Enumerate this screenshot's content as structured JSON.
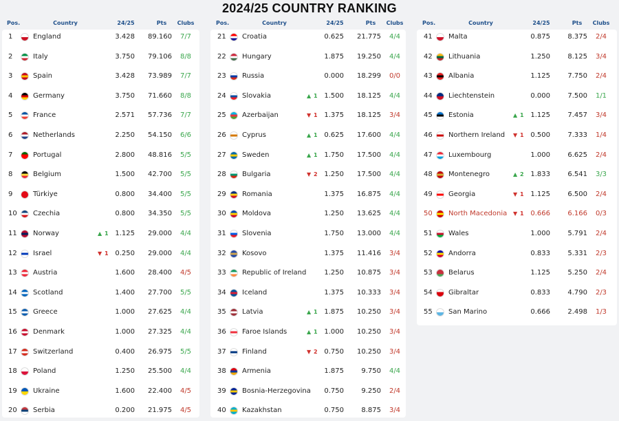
{
  "title": "2024/25 COUNTRY RANKING",
  "columns": {
    "pos": "Pos.",
    "country": "Country",
    "coef": "24/25",
    "pts": "Pts",
    "clubs": "Clubs"
  },
  "rows": [
    {
      "pos": 1,
      "country": "England",
      "coef": "3.428",
      "pts": "89.160",
      "clubs": "7/7",
      "flag": [
        "#fff",
        "#ce1124"
      ]
    },
    {
      "pos": 2,
      "country": "Italy",
      "coef": "3.750",
      "pts": "79.106",
      "clubs": "8/8",
      "flag": [
        "#009246",
        "#fff",
        "#ce2b37"
      ]
    },
    {
      "pos": 3,
      "country": "Spain",
      "coef": "3.428",
      "pts": "73.989",
      "clubs": "7/7",
      "flag": [
        "#c60b1e",
        "#ffc400",
        "#c60b1e"
      ]
    },
    {
      "pos": 4,
      "country": "Germany",
      "coef": "3.750",
      "pts": "71.660",
      "clubs": "8/8",
      "flag": [
        "#000",
        "#dd0000",
        "#ffce00"
      ]
    },
    {
      "pos": 5,
      "country": "France",
      "coef": "2.571",
      "pts": "57.736",
      "clubs": "7/7",
      "flag": [
        "#0055a4",
        "#fff",
        "#ef4135"
      ]
    },
    {
      "pos": 6,
      "country": "Netherlands",
      "coef": "2.250",
      "pts": "54.150",
      "clubs": "6/6",
      "flag": [
        "#ae1c28",
        "#fff",
        "#21468b"
      ]
    },
    {
      "pos": 7,
      "country": "Portugal",
      "coef": "2.800",
      "pts": "48.816",
      "clubs": "5/5",
      "flag": [
        "#006600",
        "#ff0000",
        "#ff0000"
      ]
    },
    {
      "pos": 8,
      "country": "Belgium",
      "coef": "1.500",
      "pts": "42.700",
      "clubs": "5/5",
      "flag": [
        "#000",
        "#fae042",
        "#ed2939"
      ]
    },
    {
      "pos": 9,
      "country": "Türkiye",
      "coef": "0.800",
      "pts": "34.400",
      "clubs": "5/5",
      "flag": [
        "#e30a17",
        "#e30a17"
      ]
    },
    {
      "pos": 10,
      "country": "Czechia",
      "coef": "0.800",
      "pts": "34.350",
      "clubs": "5/5",
      "flag": [
        "#11457e",
        "#fff",
        "#d7141a"
      ]
    },
    {
      "pos": 11,
      "country": "Norway",
      "move": "1",
      "move_dir": "up",
      "coef": "1.125",
      "pts": "29.000",
      "clubs": "4/4",
      "flag": [
        "#ba0c2f",
        "#00205b",
        "#ba0c2f"
      ]
    },
    {
      "pos": 12,
      "country": "Israel",
      "move": "1",
      "move_dir": "down",
      "coef": "0.250",
      "pts": "29.000",
      "clubs": "4/4",
      "flag": [
        "#fff",
        "#0038b8",
        "#fff"
      ]
    },
    {
      "pos": 13,
      "country": "Austria",
      "coef": "1.600",
      "pts": "28.400",
      "clubs": "4/5",
      "flag": [
        "#ed2939",
        "#fff",
        "#ed2939"
      ]
    },
    {
      "pos": 14,
      "country": "Scotland",
      "coef": "1.400",
      "pts": "27.700",
      "clubs": "5/5",
      "flag": [
        "#0065bd",
        "#fff",
        "#0065bd"
      ]
    },
    {
      "pos": 15,
      "country": "Greece",
      "coef": "1.000",
      "pts": "27.625",
      "clubs": "4/4",
      "flag": [
        "#0d5eaf",
        "#fff",
        "#0d5eaf"
      ]
    },
    {
      "pos": 16,
      "country": "Denmark",
      "coef": "1.000",
      "pts": "27.325",
      "clubs": "4/4",
      "flag": [
        "#c8102e",
        "#fff",
        "#c8102e"
      ]
    },
    {
      "pos": 17,
      "country": "Switzerland",
      "coef": "0.400",
      "pts": "26.975",
      "clubs": "5/5",
      "flag": [
        "#d52b1e",
        "#fff",
        "#d52b1e"
      ]
    },
    {
      "pos": 18,
      "country": "Poland",
      "coef": "1.250",
      "pts": "25.500",
      "clubs": "4/4",
      "flag": [
        "#fff",
        "#dc143c"
      ]
    },
    {
      "pos": 19,
      "country": "Ukraine",
      "coef": "1.600",
      "pts": "22.400",
      "clubs": "4/5",
      "flag": [
        "#0057b7",
        "#ffd700"
      ]
    },
    {
      "pos": 20,
      "country": "Serbia",
      "coef": "0.200",
      "pts": "21.975",
      "clubs": "4/5",
      "flag": [
        "#c6363c",
        "#0c4076",
        "#fff"
      ]
    },
    {
      "pos": 21,
      "country": "Croatia",
      "coef": "0.625",
      "pts": "21.775",
      "clubs": "4/4",
      "flag": [
        "#ff0000",
        "#fff",
        "#171796"
      ]
    },
    {
      "pos": 22,
      "country": "Hungary",
      "coef": "1.875",
      "pts": "19.250",
      "clubs": "4/4",
      "flag": [
        "#cd2a3e",
        "#fff",
        "#436f4d"
      ]
    },
    {
      "pos": 23,
      "country": "Russia",
      "coef": "0.000",
      "pts": "18.299",
      "clubs": "0/0",
      "flag": [
        "#fff",
        "#0039a6",
        "#d52b1e"
      ]
    },
    {
      "pos": 24,
      "country": "Slovakia",
      "move": "1",
      "move_dir": "up",
      "coef": "1.500",
      "pts": "18.125",
      "clubs": "4/4",
      "flag": [
        "#fff",
        "#0b4ea2",
        "#ee1c25"
      ]
    },
    {
      "pos": 25,
      "country": "Azerbaijan",
      "move": "1",
      "move_dir": "down",
      "coef": "1.375",
      "pts": "18.125",
      "clubs": "3/4",
      "flag": [
        "#00b5e2",
        "#ef3340",
        "#509e2f"
      ]
    },
    {
      "pos": 26,
      "country": "Cyprus",
      "move": "1",
      "move_dir": "up",
      "coef": "0.625",
      "pts": "17.600",
      "clubs": "4/4",
      "flag": [
        "#fff",
        "#d57800",
        "#fff"
      ]
    },
    {
      "pos": 27,
      "country": "Sweden",
      "move": "1",
      "move_dir": "up",
      "coef": "1.750",
      "pts": "17.500",
      "clubs": "4/4",
      "flag": [
        "#006aa7",
        "#fecc00",
        "#006aa7"
      ]
    },
    {
      "pos": 28,
      "country": "Bulgaria",
      "move": "2",
      "move_dir": "down",
      "coef": "1.250",
      "pts": "17.500",
      "clubs": "4/4",
      "flag": [
        "#fff",
        "#00966e",
        "#d62612"
      ]
    },
    {
      "pos": 29,
      "country": "Romania",
      "coef": "1.375",
      "pts": "16.875",
      "clubs": "4/4",
      "flag": [
        "#002b7f",
        "#fcd116",
        "#ce1126"
      ]
    },
    {
      "pos": 30,
      "country": "Moldova",
      "coef": "1.250",
      "pts": "13.625",
      "clubs": "4/4",
      "flag": [
        "#0046ae",
        "#ffd200",
        "#cc092f"
      ]
    },
    {
      "pos": 31,
      "country": "Slovenia",
      "coef": "1.750",
      "pts": "13.000",
      "clubs": "4/4",
      "flag": [
        "#fff",
        "#005ce5",
        "#ed1c24"
      ]
    },
    {
      "pos": 32,
      "country": "Kosovo",
      "coef": "1.375",
      "pts": "11.416",
      "clubs": "3/4",
      "flag": [
        "#244aa5",
        "#d0a650",
        "#244aa5"
      ]
    },
    {
      "pos": 33,
      "country": "Republic of Ireland",
      "coef": "1.250",
      "pts": "10.875",
      "clubs": "3/4",
      "flag": [
        "#169b62",
        "#fff",
        "#ff883e"
      ]
    },
    {
      "pos": 34,
      "country": "Iceland",
      "coef": "1.375",
      "pts": "10.333",
      "clubs": "3/4",
      "flag": [
        "#02529c",
        "#dc1e35",
        "#02529c"
      ]
    },
    {
      "pos": 35,
      "country": "Latvia",
      "move": "1",
      "move_dir": "up",
      "coef": "1.875",
      "pts": "10.250",
      "clubs": "3/4",
      "flag": [
        "#9e3039",
        "#fff",
        "#9e3039"
      ]
    },
    {
      "pos": 36,
      "country": "Faroe Islands",
      "move": "1",
      "move_dir": "up",
      "coef": "1.000",
      "pts": "10.250",
      "clubs": "3/4",
      "flag": [
        "#fff",
        "#ef303e",
        "#fff"
      ]
    },
    {
      "pos": 37,
      "country": "Finland",
      "move": "2",
      "move_dir": "down",
      "coef": "0.750",
      "pts": "10.250",
      "clubs": "3/4",
      "flag": [
        "#fff",
        "#003580",
        "#fff"
      ]
    },
    {
      "pos": 38,
      "country": "Armenia",
      "coef": "1.875",
      "pts": "9.750",
      "clubs": "4/4",
      "flag": [
        "#d90012",
        "#0033a0",
        "#f2a800"
      ]
    },
    {
      "pos": 39,
      "country": "Bosnia-Herzegovina",
      "coef": "0.750",
      "pts": "9.250",
      "clubs": "2/4",
      "flag": [
        "#002395",
        "#fecb00",
        "#002395"
      ]
    },
    {
      "pos": 40,
      "country": "Kazakhstan",
      "coef": "0.750",
      "pts": "8.875",
      "clubs": "3/4",
      "flag": [
        "#00afca",
        "#fec50c",
        "#00afca"
      ]
    },
    {
      "pos": 41,
      "country": "Malta",
      "coef": "0.875",
      "pts": "8.375",
      "clubs": "2/4",
      "flag": [
        "#fff",
        "#cf142b"
      ]
    },
    {
      "pos": 42,
      "country": "Lithuania",
      "coef": "1.250",
      "pts": "8.125",
      "clubs": "3/4",
      "flag": [
        "#fdb913",
        "#006a44",
        "#c1272d"
      ]
    },
    {
      "pos": 43,
      "country": "Albania",
      "coef": "1.125",
      "pts": "7.750",
      "clubs": "2/4",
      "flag": [
        "#e41e20",
        "#000",
        "#e41e20"
      ]
    },
    {
      "pos": 44,
      "country": "Liechtenstein",
      "coef": "0.000",
      "pts": "7.500",
      "clubs": "1/1",
      "flag": [
        "#002b7f",
        "#ce1126"
      ]
    },
    {
      "pos": 45,
      "country": "Estonia",
      "move": "1",
      "move_dir": "up",
      "coef": "1.125",
      "pts": "7.457",
      "clubs": "3/4",
      "flag": [
        "#0072ce",
        "#000",
        "#fff"
      ]
    },
    {
      "pos": 46,
      "country": "Northern Ireland",
      "move": "1",
      "move_dir": "down",
      "coef": "0.500",
      "pts": "7.333",
      "clubs": "1/4",
      "flag": [
        "#fff",
        "#cc0000",
        "#fff"
      ]
    },
    {
      "pos": 47,
      "country": "Luxembourg",
      "coef": "1.000",
      "pts": "6.625",
      "clubs": "2/4",
      "flag": [
        "#ed2939",
        "#fff",
        "#00a1de"
      ]
    },
    {
      "pos": 48,
      "country": "Montenegro",
      "move": "2",
      "move_dir": "up",
      "coef": "1.833",
      "pts": "6.541",
      "clubs": "3/3",
      "flag": [
        "#c40308",
        "#d4af3a",
        "#c40308"
      ]
    },
    {
      "pos": 49,
      "country": "Georgia",
      "move": "1",
      "move_dir": "down",
      "coef": "1.125",
      "pts": "6.500",
      "clubs": "2/4",
      "flag": [
        "#fff",
        "#ff0000",
        "#fff"
      ]
    },
    {
      "pos": 50,
      "country": "North Macedonia",
      "move": "1",
      "move_dir": "down",
      "coef": "0.666",
      "pts": "6.166",
      "clubs": "0/3",
      "highlight": true,
      "flag": [
        "#d20000",
        "#ffe600",
        "#d20000"
      ]
    },
    {
      "pos": 51,
      "country": "Wales",
      "coef": "1.000",
      "pts": "5.791",
      "clubs": "2/4",
      "flag": [
        "#fff",
        "#c8102e",
        "#00b140"
      ]
    },
    {
      "pos": 52,
      "country": "Andorra",
      "coef": "0.833",
      "pts": "5.331",
      "clubs": "2/3",
      "flag": [
        "#10069f",
        "#fedd00",
        "#d50032"
      ]
    },
    {
      "pos": 53,
      "country": "Belarus",
      "coef": "1.125",
      "pts": "5.250",
      "clubs": "2/4",
      "flag": [
        "#c8313e",
        "#c8313e",
        "#4aa657"
      ]
    },
    {
      "pos": 54,
      "country": "Gibraltar",
      "coef": "0.833",
      "pts": "4.790",
      "clubs": "2/3",
      "flag": [
        "#fff",
        "#da000c",
        "#da000c"
      ]
    },
    {
      "pos": 55,
      "country": "San Marino",
      "coef": "0.666",
      "pts": "2.498",
      "clubs": "1/3",
      "flag": [
        "#fff",
        "#5eb6e4"
      ]
    }
  ]
}
